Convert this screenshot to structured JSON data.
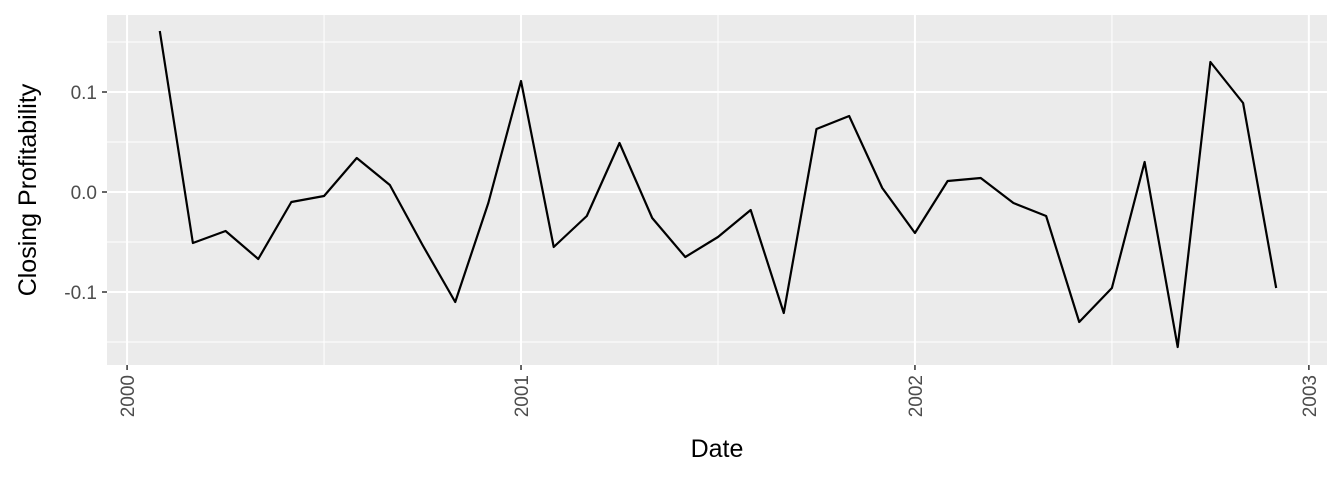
{
  "chart_data": {
    "type": "line",
    "x_label": "Date",
    "y_label": "Closing Profitability",
    "x": [
      2000.083,
      2000.167,
      2000.25,
      2000.333,
      2000.417,
      2000.5,
      2000.583,
      2000.667,
      2000.75,
      2000.833,
      2000.917,
      2001.0,
      2001.083,
      2001.167,
      2001.25,
      2001.333,
      2001.417,
      2001.5,
      2001.583,
      2001.667,
      2001.75,
      2001.833,
      2001.917,
      2002.0,
      2002.083,
      2002.167,
      2002.25,
      2002.333,
      2002.417,
      2002.5,
      2002.583,
      2002.667,
      2002.75,
      2002.833,
      2002.917
    ],
    "series": [
      {
        "color": "#000000",
        "values": [
          0.161,
          -0.051,
          -0.039,
          -0.067,
          -0.01,
          -0.004,
          0.034,
          0.007,
          -0.053,
          -0.11,
          -0.011,
          0.111,
          -0.055,
          -0.024,
          0.049,
          -0.026,
          -0.065,
          -0.045,
          -0.018,
          -0.121,
          0.063,
          0.076,
          0.004,
          -0.041,
          0.011,
          0.014,
          -0.011,
          -0.024,
          -0.13,
          -0.096,
          0.03,
          -0.155,
          0.13,
          0.089,
          -0.096
        ]
      }
    ],
    "xlim": [
      1999.949,
      2003.046
    ],
    "xticks": [
      2000,
      2001,
      2002,
      2003
    ],
    "ylim": [
      -0.173,
      0.177
    ],
    "yticks": [
      -0.1,
      {
        "value": 0,
        "label": "0.0"
      },
      0.1
    ],
    "grid": true
  }
}
